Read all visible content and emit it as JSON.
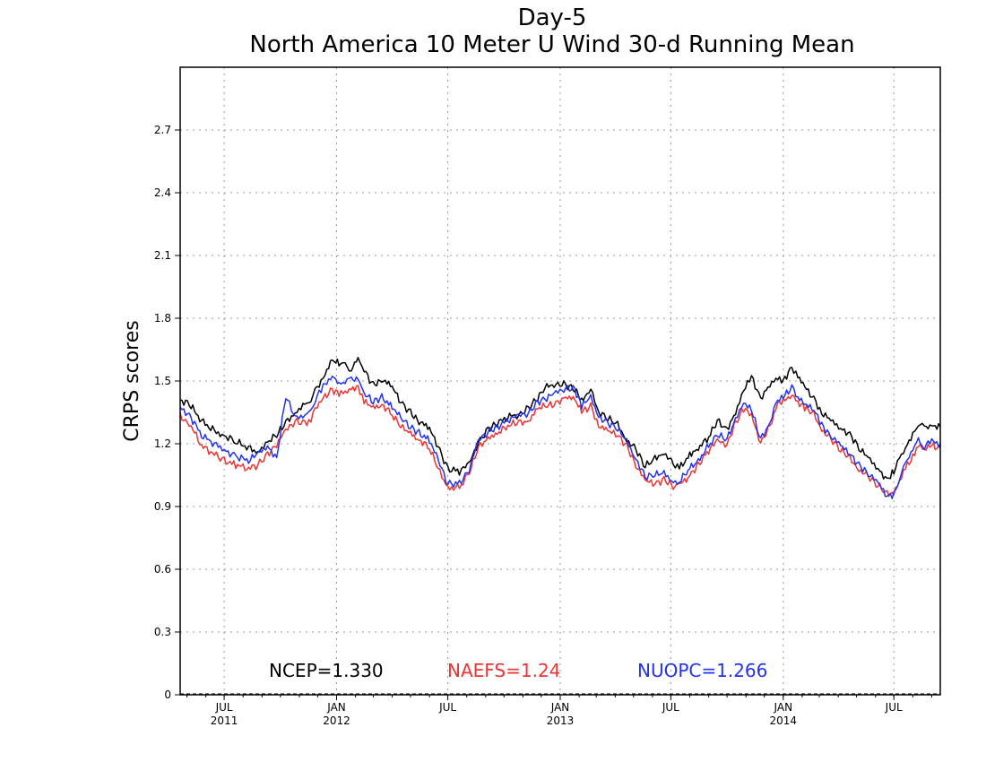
{
  "chart_data": {
    "type": "line",
    "title": "Day-5",
    "subtitle": "North America 10 Meter U Wind 30-d Running Mean",
    "xlabel": "",
    "ylabel": "CRPS scores",
    "ylim": [
      0,
      3.0
    ],
    "xlim": [
      "2011-04-20",
      "2014-09-15"
    ],
    "grid": true,
    "yticks": [
      {
        "value": 0,
        "label": "0"
      },
      {
        "value": 0.3,
        "label": "0.3"
      },
      {
        "value": 0.6,
        "label": "0.6"
      },
      {
        "value": 0.9,
        "label": "0.9"
      },
      {
        "value": 1.2,
        "label": "1.2"
      },
      {
        "value": 1.5,
        "label": "1.5"
      },
      {
        "value": 1.8,
        "label": "1.8"
      },
      {
        "value": 2.1,
        "label": "2.1"
      },
      {
        "value": 2.4,
        "label": "2.4"
      },
      {
        "value": 2.7,
        "label": "2.7"
      }
    ],
    "xticks": [
      {
        "date": "2011-07-01",
        "label": "JUL",
        "year": "2011"
      },
      {
        "date": "2012-01-01",
        "label": "JAN",
        "year": "2012"
      },
      {
        "date": "2012-07-01",
        "label": "JUL",
        "year": ""
      },
      {
        "date": "2013-01-01",
        "label": "JAN",
        "year": "2013"
      },
      {
        "date": "2013-07-01",
        "label": "JUL",
        "year": ""
      },
      {
        "date": "2014-01-01",
        "label": "JAN",
        "year": "2014"
      },
      {
        "date": "2014-07-01",
        "label": "JUL",
        "year": ""
      }
    ],
    "legend_placement": "bottom",
    "series": [
      {
        "name": "NCEP",
        "color": "#000000",
        "legend": "NCEP=1.330",
        "x": [
          "2011-04-20",
          "2011-05-05",
          "2011-05-25",
          "2011-06-15",
          "2011-07-01",
          "2011-07-20",
          "2011-08-10",
          "2011-08-25",
          "2011-09-10",
          "2011-09-25",
          "2011-10-10",
          "2011-10-25",
          "2011-11-10",
          "2011-11-20",
          "2011-11-27",
          "2011-12-10",
          "2011-12-25",
          "2012-01-05",
          "2012-01-15",
          "2012-01-25",
          "2012-02-05",
          "2012-02-15",
          "2012-03-01",
          "2012-03-15",
          "2012-04-01",
          "2012-04-15",
          "2012-05-01",
          "2012-05-15",
          "2012-06-01",
          "2012-06-15",
          "2012-07-01",
          "2012-07-20",
          "2012-08-05",
          "2012-08-20",
          "2012-09-05",
          "2012-09-20",
          "2012-10-10",
          "2012-10-25",
          "2012-11-10",
          "2012-11-25",
          "2012-12-10",
          "2012-12-25",
          "2013-01-10",
          "2013-01-25",
          "2013-02-05",
          "2013-02-20",
          "2013-03-05",
          "2013-03-20",
          "2013-04-05",
          "2013-04-20",
          "2013-05-05",
          "2013-05-20",
          "2013-06-05",
          "2013-06-20",
          "2013-07-05",
          "2013-07-15",
          "2013-08-01",
          "2013-08-15",
          "2013-09-01",
          "2013-09-15",
          "2013-10-01",
          "2013-10-15",
          "2013-10-28",
          "2013-11-10",
          "2013-11-25",
          "2013-12-10",
          "2013-12-20",
          "2014-01-01",
          "2014-01-15",
          "2014-01-25",
          "2014-02-05",
          "2014-02-20",
          "2014-03-05",
          "2014-03-20",
          "2014-04-05",
          "2014-04-20",
          "2014-05-05",
          "2014-05-20",
          "2014-06-05",
          "2014-06-20",
          "2014-07-01",
          "2014-07-10",
          "2014-07-20",
          "2014-08-01",
          "2014-08-10",
          "2014-08-20",
          "2014-09-01",
          "2014-09-15"
        ],
        "values": [
          1.41,
          1.39,
          1.31,
          1.26,
          1.24,
          1.21,
          1.18,
          1.16,
          1.21,
          1.24,
          1.3,
          1.35,
          1.39,
          1.41,
          1.45,
          1.52,
          1.6,
          1.58,
          1.57,
          1.56,
          1.61,
          1.55,
          1.48,
          1.51,
          1.47,
          1.4,
          1.35,
          1.31,
          1.27,
          1.19,
          1.08,
          1.07,
          1.1,
          1.21,
          1.27,
          1.3,
          1.33,
          1.34,
          1.37,
          1.42,
          1.47,
          1.49,
          1.48,
          1.46,
          1.4,
          1.47,
          1.35,
          1.32,
          1.29,
          1.22,
          1.17,
          1.09,
          1.13,
          1.16,
          1.1,
          1.08,
          1.15,
          1.18,
          1.23,
          1.31,
          1.27,
          1.35,
          1.45,
          1.52,
          1.42,
          1.48,
          1.51,
          1.5,
          1.57,
          1.52,
          1.47,
          1.42,
          1.35,
          1.31,
          1.27,
          1.25,
          1.18,
          1.13,
          1.08,
          1.03,
          1.07,
          1.12,
          1.18,
          1.25,
          1.3,
          1.27,
          1.29,
          1.28
        ]
      },
      {
        "name": "NAEFS",
        "color": "#ee3333",
        "legend": "NAEFS=1.24",
        "x": [
          "2011-04-20",
          "2011-05-05",
          "2011-05-25",
          "2011-06-15",
          "2011-07-01",
          "2011-07-20",
          "2011-08-10",
          "2011-08-25",
          "2011-09-10",
          "2011-09-25",
          "2011-10-10",
          "2011-10-25",
          "2011-11-10",
          "2011-11-20",
          "2011-11-27",
          "2011-12-10",
          "2011-12-25",
          "2012-01-05",
          "2012-01-15",
          "2012-01-25",
          "2012-02-05",
          "2012-02-15",
          "2012-03-01",
          "2012-03-15",
          "2012-04-01",
          "2012-04-15",
          "2012-05-01",
          "2012-05-15",
          "2012-06-01",
          "2012-06-15",
          "2012-07-01",
          "2012-07-20",
          "2012-08-05",
          "2012-08-20",
          "2012-09-05",
          "2012-09-20",
          "2012-10-10",
          "2012-10-25",
          "2012-11-10",
          "2012-11-25",
          "2012-12-10",
          "2012-12-25",
          "2013-01-10",
          "2013-01-25",
          "2013-02-05",
          "2013-02-20",
          "2013-03-05",
          "2013-03-20",
          "2013-04-05",
          "2013-04-20",
          "2013-05-05",
          "2013-05-20",
          "2013-06-05",
          "2013-06-20",
          "2013-07-05",
          "2013-07-15",
          "2013-08-01",
          "2013-08-15",
          "2013-09-01",
          "2013-09-15",
          "2013-10-01",
          "2013-10-15",
          "2013-10-28",
          "2013-11-10",
          "2013-11-25",
          "2013-12-10",
          "2013-12-20",
          "2014-01-01",
          "2014-01-15",
          "2014-01-25",
          "2014-02-05",
          "2014-02-20",
          "2014-03-05",
          "2014-03-20",
          "2014-04-05",
          "2014-04-20",
          "2014-05-05",
          "2014-05-20",
          "2014-06-05",
          "2014-06-20",
          "2014-07-01",
          "2014-07-10",
          "2014-07-20",
          "2014-08-01",
          "2014-08-10",
          "2014-08-20",
          "2014-09-01",
          "2014-09-15"
        ],
        "values": [
          1.33,
          1.3,
          1.19,
          1.15,
          1.12,
          1.1,
          1.08,
          1.1,
          1.15,
          1.2,
          1.26,
          1.31,
          1.3,
          1.32,
          1.36,
          1.42,
          1.46,
          1.44,
          1.44,
          1.46,
          1.48,
          1.4,
          1.37,
          1.39,
          1.34,
          1.28,
          1.25,
          1.22,
          1.18,
          1.08,
          0.99,
          0.99,
          1.06,
          1.18,
          1.23,
          1.25,
          1.29,
          1.3,
          1.31,
          1.37,
          1.38,
          1.39,
          1.43,
          1.41,
          1.35,
          1.38,
          1.29,
          1.26,
          1.24,
          1.19,
          1.1,
          1.02,
          1.01,
          1.03,
          1.0,
          1.0,
          1.05,
          1.1,
          1.17,
          1.21,
          1.2,
          1.3,
          1.37,
          1.33,
          1.21,
          1.28,
          1.38,
          1.4,
          1.44,
          1.4,
          1.37,
          1.34,
          1.27,
          1.22,
          1.17,
          1.13,
          1.08,
          1.04,
          1.0,
          0.96,
          0.97,
          1.02,
          1.08,
          1.14,
          1.2,
          1.17,
          1.19,
          1.18
        ]
      },
      {
        "name": "NUOPC",
        "color": "#2233ee",
        "legend": "NUOPC=1.266",
        "x": [
          "2011-04-20",
          "2011-05-05",
          "2011-05-25",
          "2011-06-15",
          "2011-07-01",
          "2011-07-20",
          "2011-08-10",
          "2011-08-25",
          "2011-09-10",
          "2011-09-25",
          "2011-10-10",
          "2011-10-25",
          "2011-11-10",
          "2011-11-20",
          "2011-11-27",
          "2011-12-10",
          "2011-12-25",
          "2012-01-05",
          "2012-01-15",
          "2012-01-25",
          "2012-02-05",
          "2012-02-15",
          "2012-03-01",
          "2012-03-15",
          "2012-04-01",
          "2012-04-15",
          "2012-05-01",
          "2012-05-15",
          "2012-06-01",
          "2012-06-15",
          "2012-07-01",
          "2012-07-20",
          "2012-08-05",
          "2012-08-20",
          "2012-09-05",
          "2012-09-20",
          "2012-10-10",
          "2012-10-25",
          "2012-11-10",
          "2012-11-25",
          "2012-12-10",
          "2012-12-25",
          "2013-01-10",
          "2013-01-25",
          "2013-02-05",
          "2013-02-20",
          "2013-03-05",
          "2013-03-20",
          "2013-04-05",
          "2013-04-20",
          "2013-05-05",
          "2013-05-20",
          "2013-06-05",
          "2013-06-20",
          "2013-07-05",
          "2013-07-15",
          "2013-08-01",
          "2013-08-15",
          "2013-09-01",
          "2013-09-15",
          "2013-10-01",
          "2013-10-15",
          "2013-10-28",
          "2013-11-10",
          "2013-11-25",
          "2013-12-10",
          "2013-12-20",
          "2014-01-01",
          "2014-01-15",
          "2014-01-25",
          "2014-02-05",
          "2014-02-20",
          "2014-03-05",
          "2014-03-20",
          "2014-04-05",
          "2014-04-20",
          "2014-05-05",
          "2014-05-20",
          "2014-06-05",
          "2014-06-20",
          "2014-07-01",
          "2014-07-10",
          "2014-07-20",
          "2014-08-01",
          "2014-08-10",
          "2014-08-20",
          "2014-09-01",
          "2014-09-15"
        ],
        "values": [
          1.37,
          1.34,
          1.24,
          1.2,
          1.17,
          1.14,
          1.12,
          1.15,
          1.19,
          1.13,
          1.43,
          1.32,
          1.34,
          1.36,
          1.41,
          1.47,
          1.53,
          1.49,
          1.5,
          1.5,
          1.52,
          1.44,
          1.4,
          1.42,
          1.38,
          1.32,
          1.28,
          1.25,
          1.22,
          1.12,
          1.01,
          1.01,
          1.08,
          1.21,
          1.26,
          1.28,
          1.32,
          1.33,
          1.35,
          1.4,
          1.42,
          1.44,
          1.47,
          1.46,
          1.38,
          1.42,
          1.33,
          1.3,
          1.27,
          1.21,
          1.13,
          1.04,
          1.05,
          1.06,
          1.02,
          1.02,
          1.08,
          1.12,
          1.19,
          1.24,
          1.22,
          1.32,
          1.4,
          1.36,
          1.22,
          1.3,
          1.4,
          1.42,
          1.47,
          1.43,
          1.39,
          1.36,
          1.29,
          1.24,
          1.19,
          1.15,
          1.1,
          1.06,
          1.01,
          0.95,
          0.96,
          1.04,
          1.1,
          1.17,
          1.22,
          1.19,
          1.21,
          1.2
        ]
      }
    ]
  }
}
